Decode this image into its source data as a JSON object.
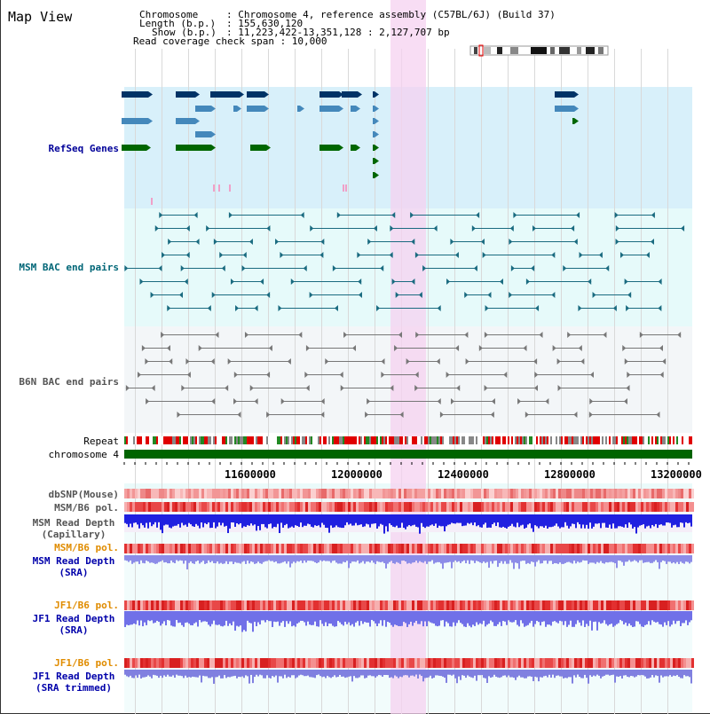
{
  "page": {
    "title": "Map View"
  },
  "info": {
    "chromosome_key": "Chromosome",
    "chromosome_value": ": Chromosome 4, reference assembly (C57BL/6J) (Build 37)",
    "length_key": "Length (b.p.)",
    "length_value": ": 155,630,120",
    "show_key": "Show (b.p.)",
    "show_value": ": 11,223,422-13,351,128 : 2,127,707 bp",
    "coverage": "Read coverage check span : 10,000"
  },
  "tracks": {
    "refseq": "RefSeq Genes",
    "msm_bac": "MSM BAC end pairs",
    "b6n_bac": "B6N BAC end pairs",
    "repeat": "Repeat",
    "chromosome": "chromosome 4",
    "dbsnp": "dbSNP(Mouse)",
    "msm_b6_pol_1": "MSM/B6 pol.",
    "msm_read_depth_cap_1": "MSM Read Depth",
    "msm_read_depth_cap_2": "(Capillary)",
    "msm_b6_pol_2": "MSM/B6 pol.",
    "msm_read_depth_sra_1": "MSM Read Depth",
    "msm_read_depth_sra_2": "(SRA)",
    "jf1_b6_pol_1": "JF1/B6 pol.",
    "jf1_read_depth_sra_1": "JF1 Read Depth",
    "jf1_read_depth_sra_2": "(SRA)",
    "jf1_b6_pol_2": "JF1/B6 pol.",
    "jf1_read_depth_trim_1": "JF1 Read Depth",
    "jf1_read_depth_trim_2": "(SRA trimmed)"
  },
  "axis": {
    "ticks": [
      "11600000",
      "12000000",
      "12400000",
      "12800000",
      "13200000"
    ]
  },
  "colors": {
    "refseq_bg": "#d8f0fa",
    "msm_bg": "#e6fafa",
    "b6n_bg": "#f3f6f8",
    "lower_bg": "#f2fcfc",
    "highlight": "#f5d2f0",
    "chromosome_bar": "#006400",
    "refseq_label": "#000099",
    "msm_label": "#006677",
    "b6n_label": "#555555",
    "orange_label": "#e08c00",
    "blue_label": "#0000aa"
  }
}
